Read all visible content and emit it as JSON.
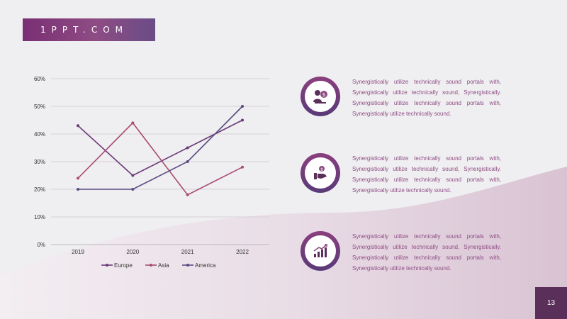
{
  "brand": {
    "text": "1PPT.COM"
  },
  "colors": {
    "accent": "#7a2f74",
    "europe": "#6b3a78",
    "asia": "#a84c72",
    "america": "#5a4a82"
  },
  "chart_data": {
    "type": "line",
    "categories": [
      "2019",
      "2020",
      "2021",
      "2022"
    ],
    "series": [
      {
        "name": "Europe",
        "values": [
          43,
          25,
          35,
          45
        ]
      },
      {
        "name": "Asia",
        "values": [
          24,
          44,
          18,
          28
        ]
      },
      {
        "name": "America",
        "values": [
          20,
          20,
          30,
          50
        ]
      }
    ],
    "yticks": [
      "0%",
      "10%",
      "20%",
      "30%",
      "40%",
      "50%",
      "60%"
    ],
    "ylim": [
      0,
      60
    ],
    "grid": true,
    "legend_position": "bottom"
  },
  "items": [
    {
      "icon": "person-dollar-icon",
      "text": "Synergistically utilize technically sound portals with, Synergistically utilize technically sound, Synergistically. Synergistically utilize technically sound portals with, Synergistically utilize technically sound."
    },
    {
      "icon": "hand-money-icon",
      "text": "Synergistically utilize technically sound portals with, Synergistically utilize technically sound, Synergistically. Synergistically utilize technically sound portals with, Synergistically utilize technically sound."
    },
    {
      "icon": "growth-chart-icon",
      "text": "Synergistically utilize technically sound portals with, Synergistically utilize technically sound, Synergistically. Synergistically utilize technically sound portals with, Synergistically utilize technically sound."
    }
  ],
  "page": {
    "number": "13"
  }
}
